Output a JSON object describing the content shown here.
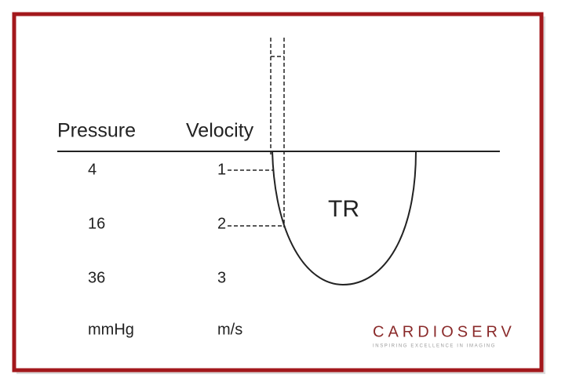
{
  "header": {
    "pressure": "Pressure",
    "velocity": "Velocity"
  },
  "rows": [
    {
      "pressure": "4",
      "velocity": "1"
    },
    {
      "pressure": "16",
      "velocity": "2"
    },
    {
      "pressure": "36",
      "velocity": "3"
    }
  ],
  "units": {
    "pressure": "mmHg",
    "velocity": "m/s"
  },
  "curve_label": "TR",
  "logo": {
    "name": "CARDIOSERV",
    "tagline": "INSPIRING EXCELLENCE IN IMAGING"
  }
}
